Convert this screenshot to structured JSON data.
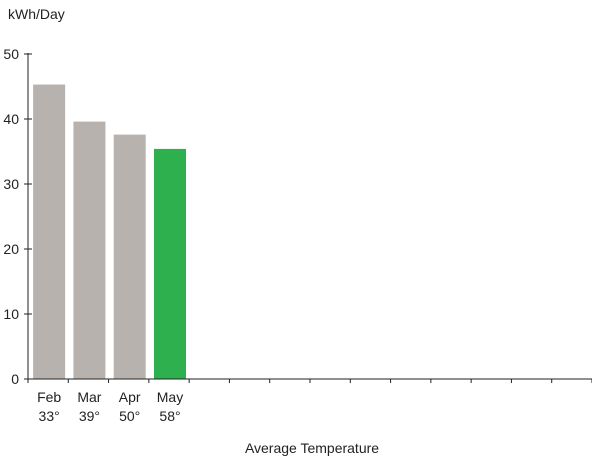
{
  "chart_data": {
    "type": "bar",
    "ylabel": "kWh/Day",
    "xlabel": "Average Temperature",
    "ylim": [
      0,
      50
    ],
    "yticks": [
      0,
      10,
      20,
      30,
      40,
      50
    ],
    "grid": false,
    "legend": "none",
    "slots": 14,
    "categories": [
      {
        "month": "Feb",
        "temp": "33°"
      },
      {
        "month": "Mar",
        "temp": "39°"
      },
      {
        "month": "Apr",
        "temp": "50°"
      },
      {
        "month": "May",
        "temp": "58°"
      }
    ],
    "values": [
      45.3,
      39.6,
      37.6,
      35.4
    ],
    "colors": {
      "past": "#b8b2ae",
      "current": "#2db04d",
      "axis": "#222222"
    },
    "highlight_index": 3
  }
}
